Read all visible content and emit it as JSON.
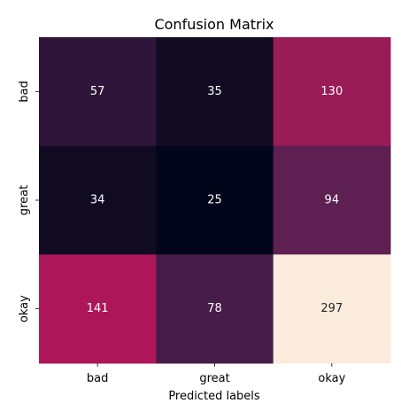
{
  "chart_data": {
    "type": "heatmap",
    "title": "Confusion Matrix",
    "xlabel": "Predicted labels",
    "ylabel": "",
    "x_categories": [
      "bad",
      "great",
      "okay"
    ],
    "y_categories": [
      "bad",
      "great",
      "okay"
    ],
    "values": [
      [
        57,
        35,
        130
      ],
      [
        34,
        25,
        94
      ],
      [
        141,
        78,
        297
      ]
    ],
    "colormap": "rocket",
    "colorbar": false,
    "cell_colors": [
      [
        "#2e1539",
        "#120b22",
        "#991c57"
      ],
      [
        "#110b22",
        "#03051a",
        "#5e1f52"
      ],
      [
        "#ad1759",
        "#481c4a",
        "#faebdd"
      ]
    ],
    "cell_text_colors": [
      [
        "#ffffff",
        "#ffffff",
        "#ffffff"
      ],
      [
        "#ffffff",
        "#ffffff",
        "#ffffff"
      ],
      [
        "#ffffff",
        "#ffffff",
        "#262626"
      ]
    ]
  }
}
